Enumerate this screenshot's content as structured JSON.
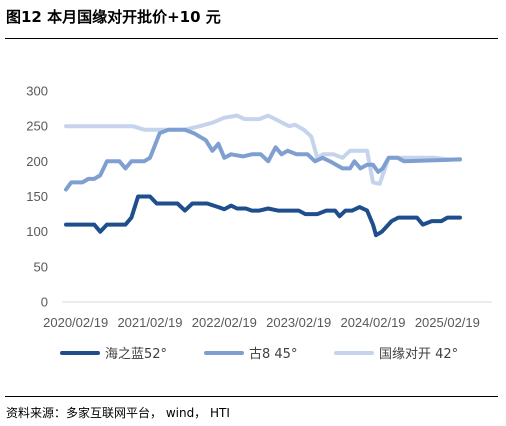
{
  "figure_title": "图12 本月国缘对开批价+10 元",
  "source_note": "资料来源：多家互联网平台， wind， HTI",
  "chart_data": {
    "type": "line",
    "title": "",
    "xlabel": "",
    "ylabel": "",
    "ylim": [
      0,
      300
    ],
    "yticks": [
      0,
      50,
      100,
      150,
      200,
      250,
      300
    ],
    "yticks_text": [
      "0",
      "50",
      "100",
      "150",
      "200",
      "250",
      "300"
    ],
    "xlim": [
      2020.0,
      2025.3
    ],
    "xticks": [
      2020.13,
      2021.13,
      2022.13,
      2023.13,
      2024.13,
      2025.13
    ],
    "xticks_text": [
      "2020/02/19",
      "2021/02/19",
      "2022/02/19",
      "2023/02/19",
      "2024/02/19",
      "2025/02/19"
    ],
    "grid": false,
    "legend_position": "bottom",
    "series": [
      {
        "name": "海之蓝52°",
        "color": "#1f4e8c",
        "points": [
          [
            2020.0,
            110
          ],
          [
            2020.13,
            110
          ],
          [
            2020.3,
            110
          ],
          [
            2020.38,
            110
          ],
          [
            2020.46,
            100
          ],
          [
            2020.55,
            110
          ],
          [
            2020.72,
            110
          ],
          [
            2020.8,
            110
          ],
          [
            2020.88,
            120
          ],
          [
            2020.97,
            150
          ],
          [
            2021.13,
            150
          ],
          [
            2021.22,
            140
          ],
          [
            2021.38,
            140
          ],
          [
            2021.5,
            140
          ],
          [
            2021.6,
            130
          ],
          [
            2021.7,
            140
          ],
          [
            2021.9,
            140
          ],
          [
            2022.05,
            135
          ],
          [
            2022.13,
            132
          ],
          [
            2022.22,
            137
          ],
          [
            2022.3,
            133
          ],
          [
            2022.42,
            133
          ],
          [
            2022.5,
            130
          ],
          [
            2022.6,
            130
          ],
          [
            2022.72,
            133
          ],
          [
            2022.85,
            130
          ],
          [
            2023.0,
            130
          ],
          [
            2023.13,
            130
          ],
          [
            2023.22,
            125
          ],
          [
            2023.38,
            125
          ],
          [
            2023.5,
            130
          ],
          [
            2023.62,
            130
          ],
          [
            2023.68,
            122
          ],
          [
            2023.76,
            130
          ],
          [
            2023.85,
            130
          ],
          [
            2023.95,
            135
          ],
          [
            2024.05,
            130
          ],
          [
            2024.13,
            110
          ],
          [
            2024.17,
            95
          ],
          [
            2024.25,
            100
          ],
          [
            2024.38,
            115
          ],
          [
            2024.47,
            120
          ],
          [
            2024.72,
            120
          ],
          [
            2024.8,
            110
          ],
          [
            2024.92,
            115
          ],
          [
            2025.05,
            115
          ],
          [
            2025.13,
            120
          ],
          [
            2025.3,
            120
          ]
        ]
      },
      {
        "name": "古8 45°",
        "color": "#7f9fd1",
        "points": [
          [
            2020.0,
            160
          ],
          [
            2020.07,
            170
          ],
          [
            2020.22,
            170
          ],
          [
            2020.3,
            175
          ],
          [
            2020.38,
            175
          ],
          [
            2020.46,
            180
          ],
          [
            2020.55,
            200
          ],
          [
            2020.72,
            200
          ],
          [
            2020.8,
            190
          ],
          [
            2020.88,
            200
          ],
          [
            2021.05,
            200
          ],
          [
            2021.13,
            205
          ],
          [
            2021.26,
            240
          ],
          [
            2021.38,
            245
          ],
          [
            2021.6,
            245
          ],
          [
            2021.72,
            240
          ],
          [
            2021.88,
            230
          ],
          [
            2021.97,
            215
          ],
          [
            2022.05,
            225
          ],
          [
            2022.13,
            205
          ],
          [
            2022.22,
            210
          ],
          [
            2022.38,
            207
          ],
          [
            2022.5,
            210
          ],
          [
            2022.62,
            210
          ],
          [
            2022.72,
            200
          ],
          [
            2022.82,
            220
          ],
          [
            2022.9,
            210
          ],
          [
            2022.98,
            215
          ],
          [
            2023.1,
            210
          ],
          [
            2023.25,
            210
          ],
          [
            2023.35,
            200
          ],
          [
            2023.45,
            205
          ],
          [
            2023.55,
            200
          ],
          [
            2023.72,
            190
          ],
          [
            2023.82,
            190
          ],
          [
            2023.88,
            200
          ],
          [
            2023.96,
            190
          ],
          [
            2024.05,
            195
          ],
          [
            2024.13,
            195
          ],
          [
            2024.2,
            185
          ],
          [
            2024.26,
            190
          ],
          [
            2024.34,
            205
          ],
          [
            2024.46,
            205
          ],
          [
            2024.55,
            200
          ],
          [
            2025.13,
            202
          ],
          [
            2025.3,
            203
          ]
        ]
      },
      {
        "name": "国缘对开 42°",
        "color": "#c5d4ec",
        "points": [
          [
            2020.0,
            250
          ],
          [
            2020.3,
            250
          ],
          [
            2020.72,
            250
          ],
          [
            2020.9,
            250
          ],
          [
            2021.05,
            245
          ],
          [
            2021.4,
            245
          ],
          [
            2021.6,
            245
          ],
          [
            2021.8,
            250
          ],
          [
            2021.97,
            255
          ],
          [
            2022.13,
            262
          ],
          [
            2022.3,
            265
          ],
          [
            2022.4,
            260
          ],
          [
            2022.6,
            260
          ],
          [
            2022.72,
            265
          ],
          [
            2022.85,
            258
          ],
          [
            2023.0,
            250
          ],
          [
            2023.08,
            252
          ],
          [
            2023.2,
            245
          ],
          [
            2023.3,
            235
          ],
          [
            2023.38,
            205
          ],
          [
            2023.46,
            210
          ],
          [
            2023.6,
            210
          ],
          [
            2023.72,
            205
          ],
          [
            2023.82,
            215
          ],
          [
            2024.0,
            215
          ],
          [
            2024.05,
            215
          ],
          [
            2024.13,
            170
          ],
          [
            2024.22,
            168
          ],
          [
            2024.34,
            205
          ],
          [
            2024.46,
            205
          ],
          [
            2024.55,
            205
          ],
          [
            2024.72,
            205
          ],
          [
            2024.95,
            205
          ],
          [
            2025.13,
            203
          ],
          [
            2025.3,
            202
          ]
        ]
      }
    ]
  }
}
